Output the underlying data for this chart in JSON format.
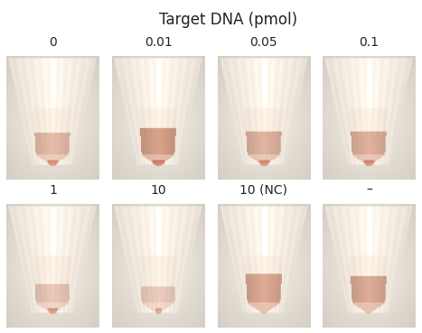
{
  "title": "Target DNA (pmol)",
  "title_fontsize": 12,
  "title_color": "#222222",
  "bg_color": "#ffffff",
  "label_fontsize": 10,
  "label_color": "#222222",
  "row1_labels": [
    "0",
    "0.01",
    "0.05",
    "0.1"
  ],
  "row2_labels": [
    "1",
    "10",
    "10 (NC)",
    "–"
  ],
  "figsize": [
    4.67,
    3.69
  ],
  "dpi": 100,
  "row1_specs": [
    {
      "liquid_alpha": 0.55,
      "pellet_size": 0.18,
      "pellet_alpha": 0.7,
      "cup_color": [
        210,
        140,
        110
      ],
      "cup_fill": 0.45
    },
    {
      "liquid_alpha": 0.7,
      "pellet_size": 0.2,
      "pellet_alpha": 0.85,
      "cup_color": [
        200,
        125,
        95
      ],
      "cup_fill": 0.55
    },
    {
      "liquid_alpha": 0.6,
      "pellet_size": 0.18,
      "pellet_alpha": 0.75,
      "cup_color": [
        205,
        135,
        110
      ],
      "cup_fill": 0.48
    },
    {
      "liquid_alpha": 0.6,
      "pellet_size": 0.18,
      "pellet_alpha": 0.75,
      "cup_color": [
        205,
        130,
        105
      ],
      "cup_fill": 0.48
    }
  ],
  "row2_specs": [
    {
      "liquid_alpha": 0.45,
      "pellet_size": 0.16,
      "pellet_alpha": 0.65,
      "cup_color": [
        210,
        140,
        115
      ],
      "cup_fill": 0.38
    },
    {
      "liquid_alpha": 0.4,
      "pellet_size": 0.12,
      "pellet_alpha": 0.55,
      "cup_color": [
        205,
        138,
        112
      ],
      "cup_fill": 0.32
    },
    {
      "liquid_alpha": 0.75,
      "pellet_size": 0.0,
      "pellet_alpha": 0.0,
      "cup_color": [
        215,
        145,
        120
      ],
      "cup_fill": 0.6
    },
    {
      "liquid_alpha": 0.7,
      "pellet_size": 0.0,
      "pellet_alpha": 0.0,
      "cup_color": [
        210,
        140,
        115
      ],
      "cup_fill": 0.55
    }
  ]
}
